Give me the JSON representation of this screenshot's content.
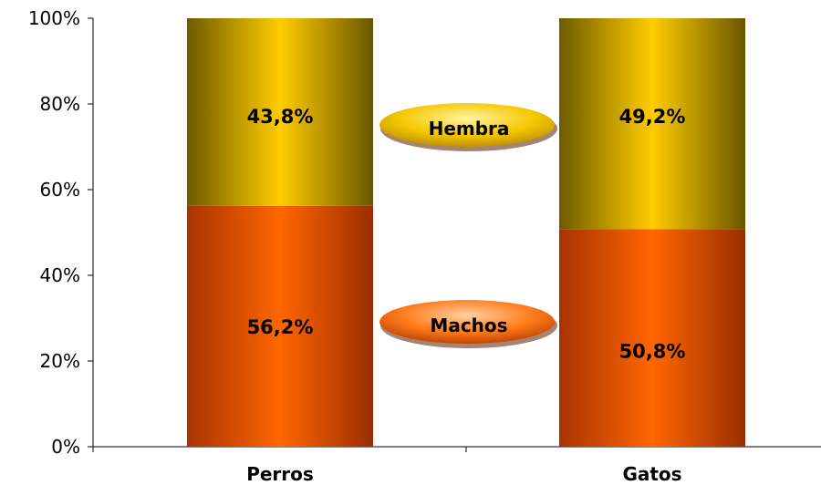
{
  "chart_data": {
    "type": "bar",
    "stacked": true,
    "categories": [
      "Perros",
      "Gatos"
    ],
    "series": [
      {
        "name": "Machos",
        "values": [
          56.2,
          50.8
        ],
        "labels": [
          "56,2%",
          "50,8%"
        ],
        "color": "#ff6600"
      },
      {
        "name": "Hembra",
        "values": [
          43.8,
          49.2
        ],
        "labels": [
          "43,8%",
          "49,2%"
        ],
        "color": "#ffcc00"
      }
    ],
    "yticks": [
      "0%",
      "20%",
      "40%",
      "60%",
      "80%",
      "100%"
    ],
    "ylim": [
      0,
      100
    ],
    "legend": "inline-between-bars",
    "grid": false
  }
}
